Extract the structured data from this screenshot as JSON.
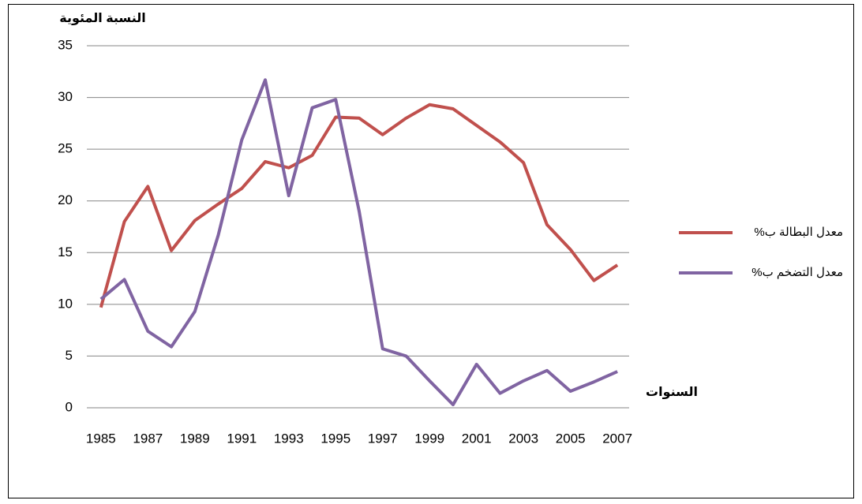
{
  "chart_data": {
    "type": "line",
    "ylabel": "النسبة المئوية",
    "xlabel": "السنوات",
    "x": [
      1985,
      1986,
      1987,
      1988,
      1989,
      1990,
      1991,
      1992,
      1993,
      1994,
      1995,
      1996,
      1997,
      1998,
      1999,
      2000,
      2001,
      2002,
      2003,
      2004,
      2005,
      2006,
      2007
    ],
    "series": [
      {
        "name": "%معدل البطالة ب",
        "color": "#c0504d",
        "values": [
          9.7,
          18,
          21.4,
          15.2,
          18.1,
          19.7,
          21.2,
          23.8,
          23.2,
          24.4,
          28.1,
          28,
          26.4,
          28,
          29.3,
          28.9,
          27.3,
          25.7,
          23.7,
          17.7,
          15.3,
          12.3,
          13.8
        ]
      },
      {
        "name": "%معدل التضخم ب",
        "color": "#8064a2",
        "values": [
          10.5,
          12.4,
          7.4,
          5.9,
          9.3,
          16.7,
          25.9,
          31.7,
          20.5,
          29,
          29.8,
          19,
          5.7,
          5,
          2.6,
          0.3,
          4.2,
          1.4,
          2.6,
          3.6,
          1.6,
          2.5,
          3.5
        ]
      }
    ],
    "xlim": [
      1984.4,
      2007.5
    ],
    "xticks": [
      1985,
      1987,
      1989,
      1991,
      1993,
      1995,
      1997,
      1999,
      2001,
      2003,
      2005,
      2007
    ],
    "ylim": [
      0,
      35
    ],
    "yticks": [
      0,
      5,
      10,
      15,
      20,
      25,
      30,
      35
    ],
    "grid": true,
    "legend": "right"
  }
}
